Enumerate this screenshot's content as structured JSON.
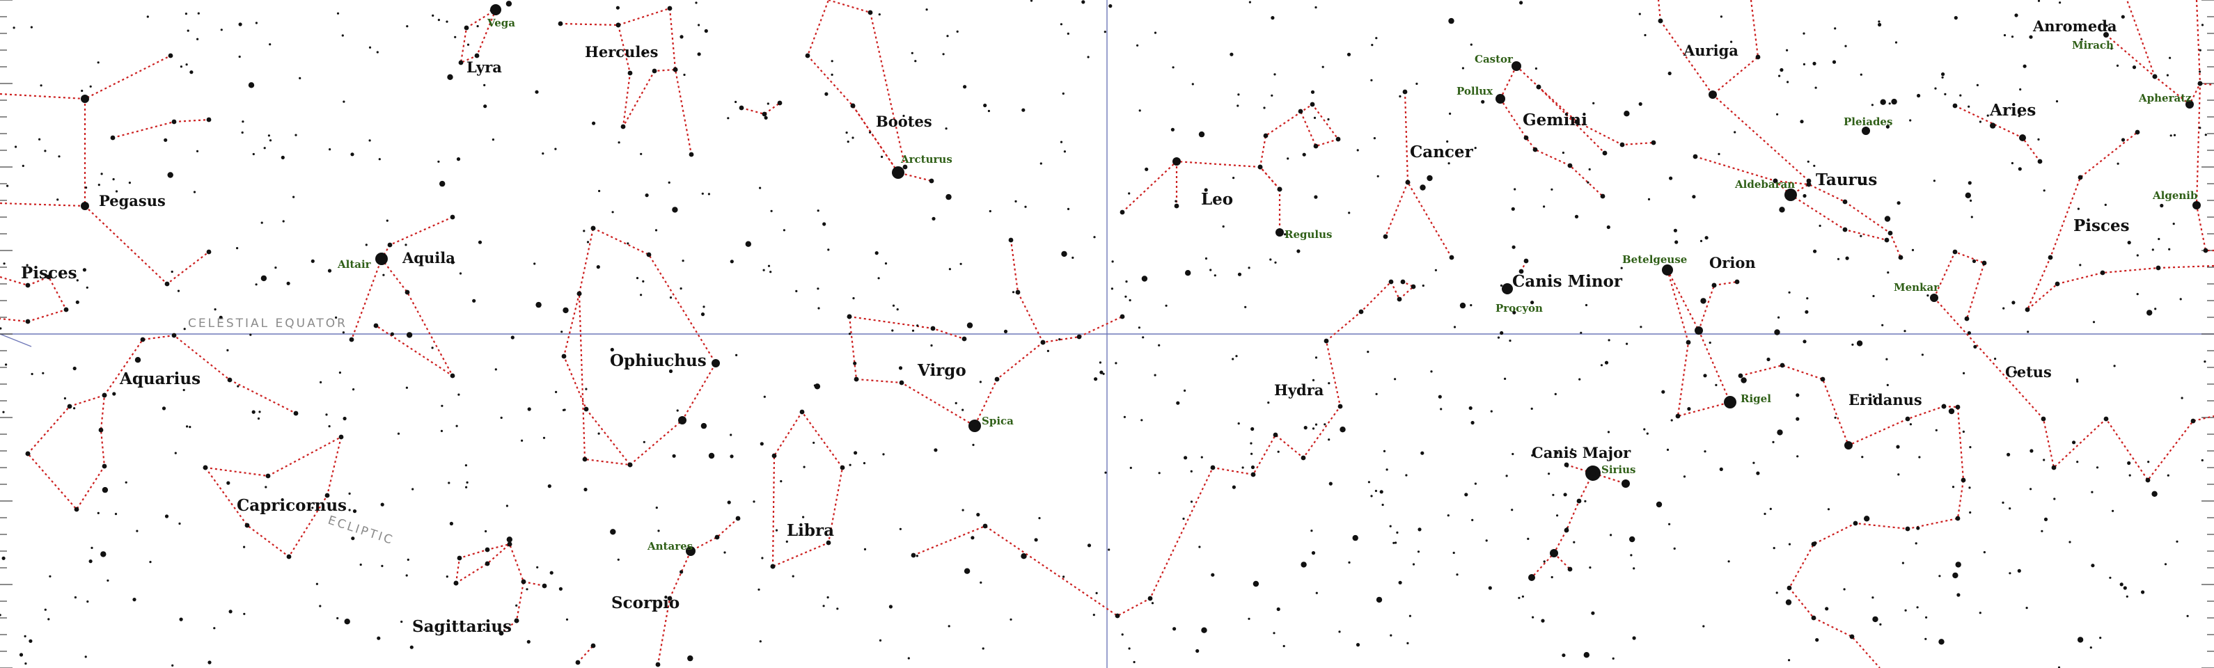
{
  "constellations": [
    {
      "id": "pegasus",
      "name": "Pegasus"
    },
    {
      "id": "pisces-west",
      "name": "Pisces"
    },
    {
      "id": "aquarius",
      "name": "Aquarius"
    },
    {
      "id": "capricornus",
      "name": "Capricornus"
    },
    {
      "id": "aquila",
      "name": "Aquila"
    },
    {
      "id": "lyra",
      "name": "Lyra"
    },
    {
      "id": "hercules",
      "name": "Hercules"
    },
    {
      "id": "bootes",
      "name": "Bootes"
    },
    {
      "id": "ophiuchus",
      "name": "Ophiuchus"
    },
    {
      "id": "sagittarius",
      "name": "Sagittarius"
    },
    {
      "id": "scorpio",
      "name": "Scorpio"
    },
    {
      "id": "libra",
      "name": "Libra"
    },
    {
      "id": "virgo",
      "name": "Virgo"
    },
    {
      "id": "leo",
      "name": "Leo"
    },
    {
      "id": "hydra",
      "name": "Hydra"
    },
    {
      "id": "cancer",
      "name": "Cancer"
    },
    {
      "id": "gemini",
      "name": "Gemini"
    },
    {
      "id": "canis-minor",
      "name": "Canis Minor"
    },
    {
      "id": "canis-major",
      "name": "Canis Major"
    },
    {
      "id": "auriga",
      "name": "Auriga"
    },
    {
      "id": "taurus",
      "name": "Taurus"
    },
    {
      "id": "orion",
      "name": "Orion"
    },
    {
      "id": "eridanus",
      "name": "Eridanus"
    },
    {
      "id": "anromeda",
      "name": "Anromeda"
    },
    {
      "id": "aries",
      "name": "Aries"
    },
    {
      "id": "pisces-east",
      "name": "Pisces"
    },
    {
      "id": "cetus",
      "name": "Cetus"
    }
  ],
  "stars": [
    {
      "id": "vega",
      "name": "Vega"
    },
    {
      "id": "altair",
      "name": "Altair"
    },
    {
      "id": "arcturus",
      "name": "Arcturus"
    },
    {
      "id": "antares",
      "name": "Antares"
    },
    {
      "id": "spica",
      "name": "Spica"
    },
    {
      "id": "regulus",
      "name": "Regulus"
    },
    {
      "id": "castor",
      "name": "Castor"
    },
    {
      "id": "pollux",
      "name": "Pollux"
    },
    {
      "id": "procyon",
      "name": "Procyon"
    },
    {
      "id": "betelgeuse",
      "name": "Betelgeuse"
    },
    {
      "id": "rigel",
      "name": "Rigel"
    },
    {
      "id": "sirius",
      "name": "Sirius"
    },
    {
      "id": "aldebaran",
      "name": "Aldebaran"
    },
    {
      "id": "pleiades",
      "name": "Pleiades"
    },
    {
      "id": "menkar",
      "name": "Menkar"
    },
    {
      "id": "mirach",
      "name": "Mirach"
    },
    {
      "id": "apheratz",
      "name": "Apheratz"
    },
    {
      "id": "algenib",
      "name": "Algenib"
    }
  ],
  "guides": {
    "celestial_equator": "CELESTIAL EQUATOR",
    "ecliptic": "ECLIPTIC"
  },
  "colors": {
    "background": "#ffffff",
    "constellation_lines": "#cc1f1f",
    "star_labels": "#2f5f17",
    "axes": "#6f78b8"
  }
}
